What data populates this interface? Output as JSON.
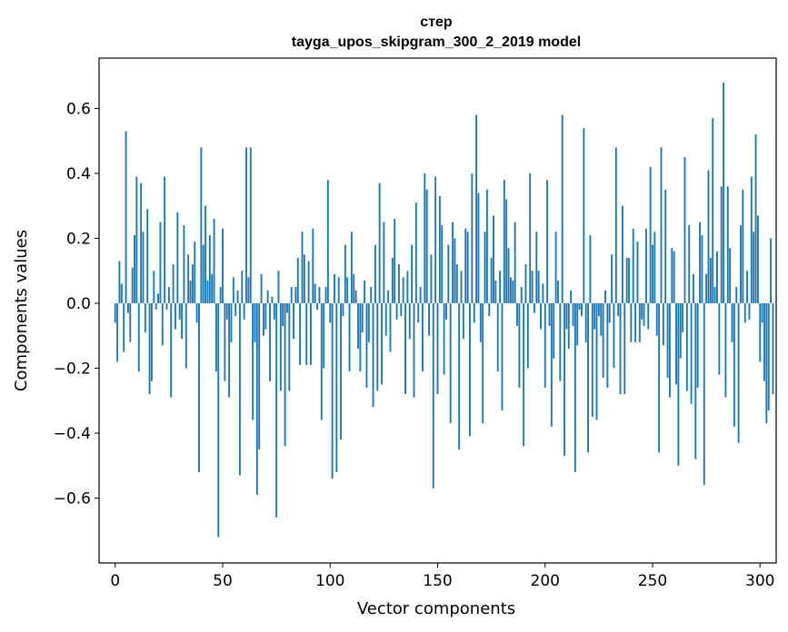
{
  "chart_data": {
    "type": "bar",
    "title": "стер",
    "subtitle": "tayga_upos_skipgram_300_2_2019 model",
    "xlabel": "Vector components",
    "ylabel": "Components values",
    "xlim": [
      -7.5,
      307.5
    ],
    "ylim": [
      -0.8,
      0.755
    ],
    "xticks": [
      0,
      50,
      100,
      150,
      200,
      250,
      300
    ],
    "xtick_labels": [
      "0",
      "50",
      "100",
      "150",
      "200",
      "250",
      "300"
    ],
    "yticks": [
      -0.6,
      -0.4,
      -0.2,
      0.0,
      0.2,
      0.4,
      0.6
    ],
    "ytick_labels": [
      "−0.6",
      "−0.4",
      "−0.2",
      "0.0",
      "0.2",
      "0.4",
      "0.6"
    ],
    "bar_color": "#1f77b4",
    "values": [
      -0.06,
      -0.18,
      0.13,
      0.06,
      -0.15,
      0.53,
      -0.03,
      -0.12,
      0.11,
      0.21,
      0.39,
      -0.21,
      0.37,
      0.22,
      -0.09,
      0.29,
      -0.28,
      -0.24,
      0.1,
      -0.02,
      0.03,
      0.25,
      -0.13,
      0.39,
      -0.02,
      0.05,
      -0.29,
      0.12,
      -0.08,
      0.28,
      -0.05,
      -0.11,
      0.24,
      -0.2,
      0.15,
      0.07,
      0.12,
      0.19,
      -0.06,
      -0.52,
      0.48,
      0.18,
      0.3,
      0.07,
      0.21,
      0.09,
      0.26,
      -0.21,
      -0.72,
      0.05,
      0.23,
      -0.24,
      -0.05,
      -0.29,
      -0.12,
      0.08,
      -0.04,
      0.04,
      -0.53,
      0.1,
      -0.05,
      0.48,
      0.08,
      0.48,
      -0.36,
      -0.12,
      -0.59,
      -0.45,
      0.09,
      -0.1,
      -0.08,
      0.04,
      -0.24,
      0.02,
      -0.05,
      -0.66,
      0.1,
      -0.27,
      -0.07,
      -0.44,
      -0.03,
      -0.27,
      0.05,
      -0.11,
      0.05,
      0.14,
      -0.19,
      0.22,
      0.15,
      -0.19,
      0.13,
      -0.19,
      0.23,
      0.06,
      -0.02,
      0.05,
      -0.36,
      -0.2,
      0.05,
      0.38,
      -0.06,
      -0.54,
      0.09,
      -0.52,
      0.08,
      -0.42,
      -0.04,
      0.18,
      0.08,
      -0.21,
      0.22,
      0.09,
      0.04,
      -0.14,
      -0.21,
      -0.09,
      0.07,
      -0.26,
      -0.12,
      0.05,
      -0.32,
      0.18,
      -0.27,
      0.37,
      -0.25,
      0.25,
      -0.1,
      0.04,
      -0.15,
      0.14,
      0.26,
      -0.05,
      0.12,
      -0.04,
      0.08,
      -0.28,
      0.1,
      -0.11,
      0.18,
      -0.29,
      0.31,
      -0.06,
      0.05,
      -0.21,
      0.4,
      0.35,
      -0.1,
      0.15,
      -0.57,
      0.39,
      -0.28,
      0.33,
      0.24,
      -0.22,
      -0.05,
      0.18,
      -0.37,
      0.25,
      0.2,
      0.12,
      -0.45,
      0.1,
      -0.11,
      0.23,
      0.22,
      -0.41,
      0.4,
      -0.06,
      0.58,
      0.34,
      -0.12,
      -0.37,
      0.22,
      0.35,
      -0.04,
      0.14,
      0.27,
      0.07,
      -0.21,
      0.1,
      -0.33,
      0.38,
      0.32,
      0.17,
      0.08,
      0.07,
      0.25,
      -0.07,
      -0.26,
      0.05,
      -0.44,
      0.12,
      -0.2,
      0.4,
      0.1,
      -0.03,
      0.22,
      0.1,
      -0.08,
      0.06,
      -0.26,
      0.38,
      -0.07,
      -0.38,
      -0.17,
      0.22,
      0.07,
      -0.24,
      0.58,
      -0.47,
      -0.08,
      -0.14,
      0.04,
      -0.07,
      -0.52,
      -0.13,
      -0.02,
      -0.04,
      0.54,
      -0.12,
      -0.46,
      0.21,
      -0.35,
      -0.08,
      -0.36,
      -0.04,
      -0.1,
      -0.23,
      0.04,
      -0.26,
      -0.06,
      0.15,
      -0.2,
      0.48,
      -0.04,
      -0.28,
      0.3,
      -0.28,
      0.14,
      0.14,
      -0.12,
      0.23,
      -0.12,
      0.19,
      -0.12,
      -0.05,
      -0.07,
      0.23,
      -0.08,
      0.42,
      0.18,
      0.22,
      -0.1,
      -0.46,
      0.48,
      -0.13,
      0.35,
      -0.23,
      -0.29,
      0.17,
      0.16,
      -0.25,
      -0.5,
      -0.17,
      -0.09,
      0.45,
      -0.27,
      0.24,
      -0.31,
      0.09,
      -0.48,
      -0.26,
      0.25,
      0.21,
      -0.56,
      0.09,
      0.41,
      0.14,
      0.57,
      0.05,
      0.16,
      -0.22,
      0.36,
      0.68,
      -0.29,
      0.36,
      0.17,
      -0.12,
      -0.38,
      0.05,
      -0.43,
      0.24,
      0.35,
      -0.06,
      0.1,
      -0.05,
      0.39,
      0.22,
      0.52,
      0.27,
      -0.18,
      -0.06,
      -0.24,
      -0.37,
      -0.33,
      0.2,
      -0.28
    ]
  }
}
